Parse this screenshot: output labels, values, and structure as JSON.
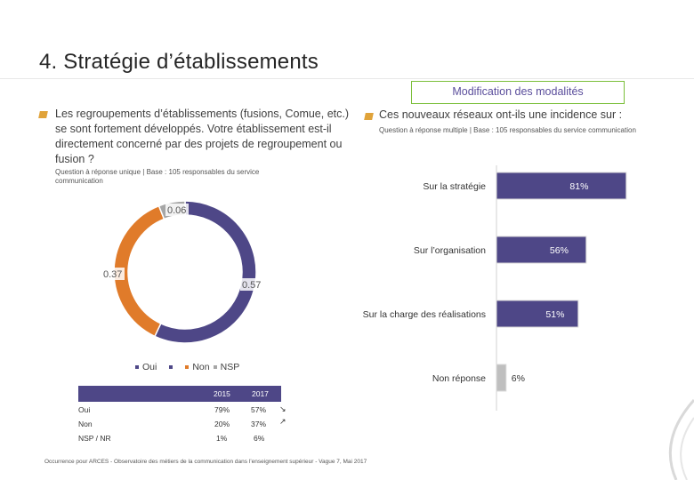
{
  "slide": {
    "title": "4. Stratégie d’établissements",
    "badge": "Modification des modalités"
  },
  "left": {
    "question": "Les regroupements d’établissements (fusions, Comue, etc.) se sont fortement développés. Votre établissement est-il directement concerné par des projets de regroupement ou fusion ?",
    "note": "Question à réponse unique | Base : 105 responsables du service communication"
  },
  "right": {
    "question": "Ces nouveaux réseaux ont-ils une incidence sur :",
    "note": "Question à réponse multiple | Base : 105 responsables du service communication"
  },
  "chart_data": [
    {
      "type": "pie",
      "categories": [
        "Oui",
        "Non",
        "NSP"
      ],
      "values": [
        0.57,
        0.37,
        0.06
      ],
      "data_labels": [
        "0.57",
        "0.37",
        "0.06"
      ],
      "colors": [
        "#4e4787",
        "#e07b2a",
        "#a6a6a6"
      ],
      "legend": "bottom"
    },
    {
      "type": "bar",
      "orientation": "horizontal",
      "categories": [
        "Sur la stratégie",
        "Sur l’organisation",
        "Sur la charge des réalisations",
        "Non réponse"
      ],
      "values": [
        81,
        56,
        51,
        6
      ],
      "data_labels": [
        "81%",
        "56%",
        "51%",
        "6%"
      ],
      "colors": [
        "#4e4787",
        "#4e4787",
        "#4e4787",
        "#bfbfbf"
      ],
      "xlim": [
        0,
        100
      ]
    }
  ],
  "legend": {
    "oui": "Oui",
    "non": "Non",
    "nsp": "NSP"
  },
  "comparison_table": {
    "headers": [
      "2015",
      "2017"
    ],
    "rows": [
      {
        "label": "Oui",
        "v2015": "79%",
        "v2017": "57%",
        "trend": "down"
      },
      {
        "label": "Non",
        "v2015": "20%",
        "v2017": "37%",
        "trend": "up"
      },
      {
        "label": "NSP / NR",
        "v2015": "1%",
        "v2017": "6%",
        "trend": ""
      }
    ]
  },
  "footer": "Occurrence pour ARCES - Observatoire des métiers de la communication dans l’enseignement supérieur - Vague 7, Mai 2017"
}
